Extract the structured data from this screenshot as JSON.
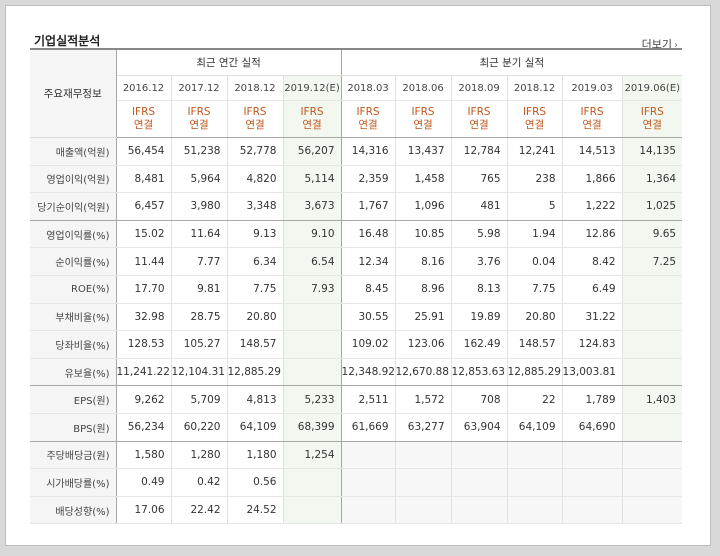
{
  "section_title": "기업실적분석",
  "more_label": "더보기",
  "corner_label": "주요재무정보",
  "annual_group_label": "최근 연간 실적",
  "quarter_group_label": "최근 분기 실적",
  "accounting_label_1": "IFRS",
  "accounting_label_2": "연결",
  "periods": [
    {
      "label": "2016.12",
      "estimate": false
    },
    {
      "label": "2017.12",
      "estimate": false
    },
    {
      "label": "2018.12",
      "estimate": false
    },
    {
      "label": "2019.12(E)",
      "estimate": true
    },
    {
      "label": "2018.03",
      "estimate": false
    },
    {
      "label": "2018.06",
      "estimate": false
    },
    {
      "label": "2018.09",
      "estimate": false
    },
    {
      "label": "2018.12",
      "estimate": false
    },
    {
      "label": "2019.03",
      "estimate": false
    },
    {
      "label": "2019.06(E)",
      "estimate": true
    }
  ],
  "rows": [
    {
      "label": "매출액(억원)",
      "values": [
        "56,454",
        "51,238",
        "52,778",
        "56,207",
        "14,316",
        "13,437",
        "12,784",
        "12,241",
        "14,513",
        "14,135"
      ]
    },
    {
      "label": "영업이익(억원)",
      "values": [
        "8,481",
        "5,964",
        "4,820",
        "5,114",
        "2,359",
        "1,458",
        "765",
        "238",
        "1,866",
        "1,364"
      ]
    },
    {
      "label": "당기순이익(억원)",
      "values": [
        "6,457",
        "3,980",
        "3,348",
        "3,673",
        "1,767",
        "1,096",
        "481",
        "5",
        "1,222",
        "1,025"
      ]
    },
    {
      "label": "영업이익률(%)",
      "values": [
        "15.02",
        "11.64",
        "9.13",
        "9.10",
        "16.48",
        "10.85",
        "5.98",
        "1.94",
        "12.86",
        "9.65"
      ]
    },
    {
      "label": "순이익률(%)",
      "values": [
        "11.44",
        "7.77",
        "6.34",
        "6.54",
        "12.34",
        "8.16",
        "3.76",
        "0.04",
        "8.42",
        "7.25"
      ]
    },
    {
      "label": "ROE(%)",
      "values": [
        "17.70",
        "9.81",
        "7.75",
        "7.93",
        "8.45",
        "8.96",
        "8.13",
        "7.75",
        "6.49",
        ""
      ]
    },
    {
      "label": "부채비율(%)",
      "values": [
        "32.98",
        "28.75",
        "20.80",
        "",
        "30.55",
        "25.91",
        "19.89",
        "20.80",
        "31.22",
        ""
      ]
    },
    {
      "label": "당좌비율(%)",
      "values": [
        "128.53",
        "105.27",
        "148.57",
        "",
        "109.02",
        "123.06",
        "162.49",
        "148.57",
        "124.83",
        ""
      ]
    },
    {
      "label": "유보율(%)",
      "values": [
        "11,241.22",
        "12,104.31",
        "12,885.29",
        "",
        "12,348.92",
        "12,670.88",
        "12,853.63",
        "12,885.29",
        "13,003.81",
        ""
      ]
    },
    {
      "label": "EPS(원)",
      "values": [
        "9,262",
        "5,709",
        "4,813",
        "5,233",
        "2,511",
        "1,572",
        "708",
        "22",
        "1,789",
        "1,403"
      ]
    },
    {
      "label": "BPS(원)",
      "values": [
        "56,234",
        "60,220",
        "64,109",
        "68,399",
        "61,669",
        "63,277",
        "63,904",
        "64,109",
        "64,690",
        ""
      ]
    },
    {
      "label": "주당배당금(원)",
      "values": [
        "1,580",
        "1,280",
        "1,180",
        "1,254",
        "",
        "",
        "",
        "",
        "",
        ""
      ]
    },
    {
      "label": "시가배당률(%)",
      "values": [
        "0.49",
        "0.42",
        "0.56",
        "",
        "",
        "",
        "",
        "",
        "",
        ""
      ]
    },
    {
      "label": "배당성향(%)",
      "values": [
        "17.06",
        "22.42",
        "24.52",
        "",
        "",
        "",
        "",
        "",
        "",
        ""
      ]
    }
  ]
}
